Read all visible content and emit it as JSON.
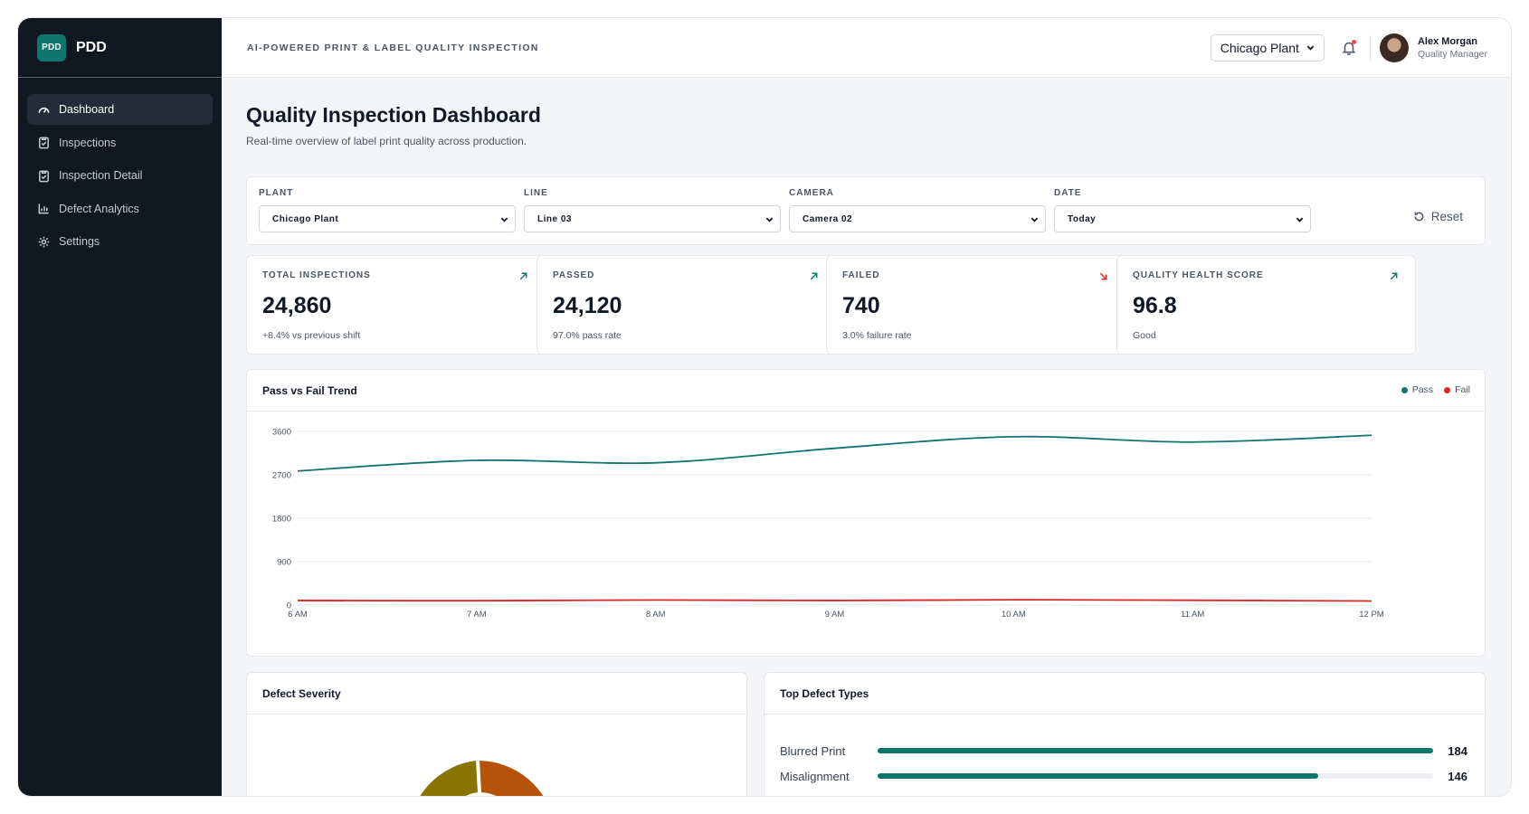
{
  "brand": {
    "logo_text": "PDD",
    "name": "PDD"
  },
  "sidebar": {
    "items": [
      {
        "label": "Dashboard",
        "icon": "gauge-icon",
        "active": true
      },
      {
        "label": "Inspections",
        "icon": "clipboard-icon",
        "active": false
      },
      {
        "label": "Inspection Detail",
        "icon": "clipboard-check-icon",
        "active": false
      },
      {
        "label": "Defect Analytics",
        "icon": "bar-chart-icon",
        "active": false
      },
      {
        "label": "Settings",
        "icon": "gear-icon",
        "active": false
      }
    ]
  },
  "topbar": {
    "title": "AI-POWERED PRINT & LABEL QUALITY INSPECTION",
    "plant_selected": "Chicago Plant",
    "notifications_unread": true,
    "user_name": "Alex Morgan",
    "user_role": "Quality Manager"
  },
  "page": {
    "title": "Quality Inspection Dashboard",
    "subtitle": "Real-time overview of label print quality across production."
  },
  "filters": {
    "plant": {
      "label": "PLANT",
      "value": "Chicago Plant"
    },
    "line": {
      "label": "LINE",
      "value": "Line 03"
    },
    "camera": {
      "label": "CAMERA",
      "value": "Camera 02"
    },
    "date": {
      "label": "DATE",
      "value": "Today"
    },
    "reset_label": "Reset"
  },
  "stats": [
    {
      "label": "TOTAL INSPECTIONS",
      "value": "24,860",
      "note": "+8.4% vs previous shift",
      "trend": "up"
    },
    {
      "label": "PASSED",
      "value": "24,120",
      "note": "97.0% pass rate",
      "trend": "up"
    },
    {
      "label": "FAILED",
      "value": "740",
      "note": "3.0% failure rate",
      "trend": "down"
    },
    {
      "label": "QUALITY HEALTH SCORE",
      "value": "96.8",
      "note": "Good",
      "trend": "up"
    }
  ],
  "colors": {
    "pass": "#0f766e",
    "fail": "#dc2626",
    "accent": "#0f766e"
  },
  "chart_data": {
    "type": "line",
    "title": "Pass vs Fail Trend",
    "x": [
      "6 AM",
      "7 AM",
      "8 AM",
      "9 AM",
      "10 AM",
      "11 AM",
      "12 PM"
    ],
    "yticks": [
      0,
      900,
      1800,
      2700,
      3600
    ],
    "ylim": [
      0,
      3600
    ],
    "series": [
      {
        "name": "Pass",
        "color": "#0f766e",
        "values": [
          2780,
          3000,
          2950,
          3250,
          3490,
          3380,
          3520
        ]
      },
      {
        "name": "Fail",
        "color": "#dc2626",
        "values": [
          95,
          90,
          105,
          95,
          110,
          100,
          85
        ]
      }
    ],
    "legend": "top-right",
    "grid": true
  },
  "severity": {
    "title": "Defect Severity"
  },
  "defect_types": {
    "title": "Top Defect Types",
    "max": 184,
    "items": [
      {
        "name": "Blurred Print",
        "count": 184
      },
      {
        "name": "Misalignment",
        "count": 146
      }
    ]
  }
}
